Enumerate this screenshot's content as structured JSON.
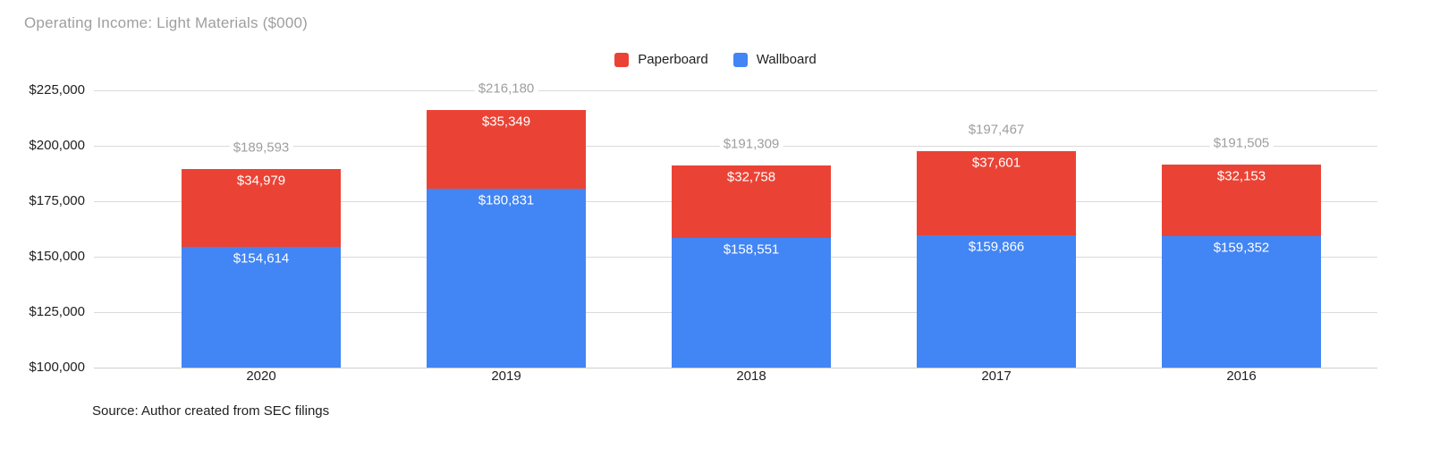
{
  "title": "Operating Income: Light Materials ($000)",
  "source_note": "Source: Author created from SEC filings",
  "colors": {
    "paperboard": "#EA4335",
    "wallboard": "#4285F4",
    "title_gray": "#9e9e9e",
    "gridline": "#dadada",
    "axis_text": "#212121",
    "background": "#ffffff"
  },
  "chart_data": {
    "type": "bar",
    "stacked": true,
    "title": "Operating Income: Light Materials ($000)",
    "xlabel": "",
    "ylabel": "",
    "categories": [
      "2020",
      "2019",
      "2018",
      "2017",
      "2016"
    ],
    "series": [
      {
        "name": "Wallboard",
        "color": "#4285F4",
        "values": [
          154614,
          180831,
          158551,
          159866,
          159352
        ],
        "labels": [
          "$154,614",
          "$180,831",
          "$158,551",
          "$159,866",
          "$159,352"
        ]
      },
      {
        "name": "Paperboard",
        "color": "#EA4335",
        "values": [
          34979,
          35349,
          32758,
          37601,
          32153
        ],
        "labels": [
          "$34,979",
          "$35,349",
          "$32,758",
          "$37,601",
          "$32,153"
        ]
      }
    ],
    "totals": [
      189593,
      216180,
      191309,
      197467,
      191505
    ],
    "total_labels": [
      "$189,593",
      "$216,180",
      "$191,309",
      "$197,467",
      "$191,505"
    ],
    "ylim": [
      100000,
      225000
    ],
    "y_ticks": [
      {
        "value": 225000,
        "label": "$225,000"
      },
      {
        "value": 200000,
        "label": "$200,000"
      },
      {
        "value": 175000,
        "label": "$175,000"
      },
      {
        "value": 150000,
        "label": "$150,000"
      },
      {
        "value": 125000,
        "label": "$125,000"
      },
      {
        "value": 100000,
        "label": "$100,000"
      }
    ],
    "grid": true,
    "legend_position": "top",
    "legend": [
      {
        "name": "Paperboard",
        "color": "#EA4335"
      },
      {
        "name": "Wallboard",
        "color": "#4285F4"
      }
    ]
  }
}
